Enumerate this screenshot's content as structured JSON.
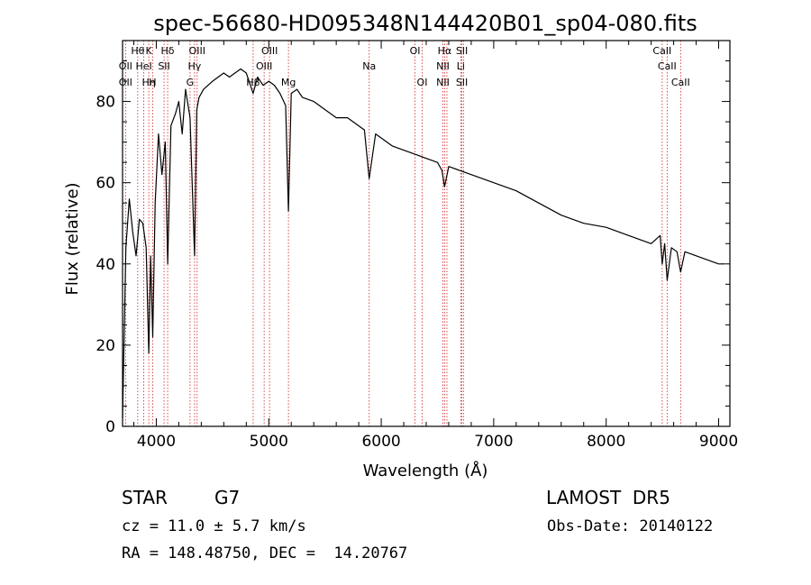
{
  "chart_data": {
    "type": "line",
    "title": "spec-56680-HD095348N144420B01_sp04-080.fits",
    "xlabel": "Wavelength (Å)",
    "ylabel": "Flux (relative)",
    "xlim": [
      3700,
      9100
    ],
    "ylim": [
      0,
      95
    ],
    "xticks": [
      4000,
      5000,
      6000,
      7000,
      8000,
      9000
    ],
    "yticks": [
      0,
      20,
      40,
      60,
      80
    ],
    "series": [
      {
        "x": [
          3700,
          3730,
          3760,
          3790,
          3820,
          3850,
          3880,
          3910,
          3933,
          3950,
          3968,
          3990,
          4020,
          4050,
          4080,
          4101,
          4130,
          4170,
          4200,
          4230,
          4260,
          4300,
          4340,
          4360,
          4380,
          4420,
          4460,
          4500,
          4550,
          4600,
          4650,
          4700,
          4750,
          4800,
          4861,
          4900,
          4950,
          5000,
          5050,
          5100,
          5150,
          5175,
          5200,
          5250,
          5300,
          5400,
          5500,
          5600,
          5700,
          5800,
          5850,
          5893,
          5950,
          6000,
          6100,
          6200,
          6300,
          6400,
          6500,
          6540,
          6563,
          6600,
          6700,
          6800,
          7000,
          7200,
          7400,
          7600,
          7800,
          8000,
          8200,
          8400,
          8480,
          8498,
          8520,
          8542,
          8580,
          8630,
          8662,
          8700,
          8800,
          8900,
          9000,
          9040
        ],
        "y": [
          2,
          44,
          56,
          48,
          42,
          51,
          50,
          44,
          18,
          42,
          22,
          55,
          72,
          62,
          70,
          40,
          74,
          77,
          80,
          72,
          83,
          76,
          42,
          78,
          81,
          83,
          84,
          85,
          86,
          87,
          86,
          87,
          88,
          87,
          82,
          86,
          84,
          85,
          84,
          82,
          79,
          53,
          82,
          83,
          81,
          80,
          78,
          76,
          76,
          74,
          73,
          61,
          72,
          71,
          69,
          68,
          67,
          66,
          65,
          63,
          59,
          64,
          63,
          62,
          60,
          58,
          55,
          52,
          50,
          49,
          47,
          45,
          47,
          40,
          45,
          36,
          44,
          43,
          38,
          43,
          42,
          41,
          40,
          40
        ]
      }
    ],
    "lines": [
      {
        "wavelength": 3727,
        "top": "",
        "mid": "OII",
        "low": "OII"
      },
      {
        "wavelength": 3835,
        "top": "Hθ",
        "mid": "",
        "low": ""
      },
      {
        "wavelength": 3889,
        "top": "",
        "mid": "HeI",
        "low": ""
      },
      {
        "wavelength": 3933,
        "top": "K",
        "mid": "",
        "low": "Hη"
      },
      {
        "wavelength": 3968,
        "top": "",
        "mid": "",
        "low": "H"
      },
      {
        "wavelength": 4069,
        "top": "",
        "mid": "SII",
        "low": ""
      },
      {
        "wavelength": 4101,
        "top": "Hδ",
        "mid": "",
        "low": ""
      },
      {
        "wavelength": 4300,
        "top": "",
        "mid": "",
        "low": "G"
      },
      {
        "wavelength": 4340,
        "top": "",
        "mid": "Hγ",
        "low": ""
      },
      {
        "wavelength": 4363,
        "top": "OIII",
        "mid": "",
        "low": ""
      },
      {
        "wavelength": 4861,
        "top": "",
        "mid": "",
        "low": "Hβ"
      },
      {
        "wavelength": 4959,
        "top": "",
        "mid": "OIII",
        "low": ""
      },
      {
        "wavelength": 5007,
        "top": "OIII",
        "mid": "",
        "low": ""
      },
      {
        "wavelength": 5175,
        "top": "",
        "mid": "",
        "low": "Mg"
      },
      {
        "wavelength": 5893,
        "top": "",
        "mid": "Na",
        "low": ""
      },
      {
        "wavelength": 6300,
        "top": "OI",
        "mid": "",
        "low": ""
      },
      {
        "wavelength": 6364,
        "top": "",
        "mid": "",
        "low": "OI"
      },
      {
        "wavelength": 6548,
        "top": "",
        "mid": "NII",
        "low": "NII"
      },
      {
        "wavelength": 6563,
        "top": "Hα",
        "mid": "",
        "low": ""
      },
      {
        "wavelength": 6584,
        "top": "",
        "mid": "",
        "low": ""
      },
      {
        "wavelength": 6707,
        "top": "",
        "mid": "Li",
        "low": ""
      },
      {
        "wavelength": 6717,
        "top": "SII",
        "mid": "",
        "low": "SII"
      },
      {
        "wavelength": 6731,
        "top": "",
        "mid": "",
        "low": ""
      },
      {
        "wavelength": 8498,
        "top": "CaII",
        "mid": "",
        "low": ""
      },
      {
        "wavelength": 8542,
        "top": "",
        "mid": "CaII",
        "low": ""
      },
      {
        "wavelength": 8662,
        "top": "",
        "mid": "",
        "low": "CaII"
      }
    ],
    "grid": false,
    "legend": "none"
  },
  "footer": {
    "obj_class": "STAR",
    "subclass": "G7",
    "cz": "cz = 11.0 ± 5.7 km/s",
    "radec": "RA = 148.48750, DEC =  14.20767",
    "survey": "LAMOST  DR5",
    "obs_date": "Obs-Date: 20140122"
  }
}
